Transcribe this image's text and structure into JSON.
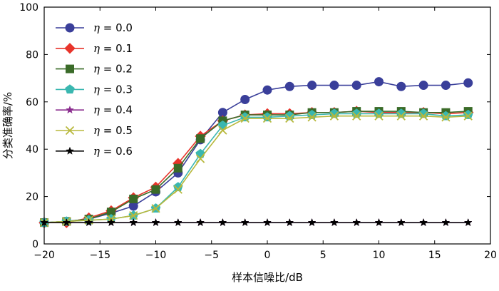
{
  "chart_data": {
    "type": "line",
    "title": "",
    "xlabel": "样本信噪比/dB",
    "ylabel": "分类准确率/%",
    "xlim": [
      -20,
      20
    ],
    "ylim": [
      0,
      100
    ],
    "xticks": [
      -20,
      -15,
      -10,
      -5,
      0,
      5,
      10,
      15,
      20
    ],
    "yticks": [
      0,
      20,
      40,
      60,
      80,
      100
    ],
    "grid": false,
    "legend_position": "top-left",
    "x": [
      -20,
      -18,
      -16,
      -14,
      -12,
      -10,
      -8,
      -6,
      -4,
      -2,
      0,
      2,
      4,
      6,
      8,
      10,
      12,
      14,
      16,
      18
    ],
    "series": [
      {
        "name": "η = 0.0",
        "color": "#3a3f9a",
        "marker": "circle",
        "values": [
          9,
          9.5,
          10.5,
          13,
          16,
          22,
          30,
          44,
          55.5,
          61,
          65,
          66.5,
          67,
          67,
          67,
          68.5,
          66.5,
          67,
          67,
          68
        ]
      },
      {
        "name": "η = 0.1",
        "color": "#e8342b",
        "marker": "diamond",
        "values": [
          9,
          9,
          11,
          14,
          19.5,
          24,
          34,
          45.5,
          52,
          54.5,
          55,
          55,
          55.5,
          55.5,
          56,
          55.5,
          55.5,
          55.5,
          55,
          55.5
        ]
      },
      {
        "name": "η = 0.2",
        "color": "#3a6b28",
        "marker": "square",
        "values": [
          9,
          9.5,
          10.5,
          13.5,
          19,
          23,
          32,
          44.5,
          52,
          54.5,
          54.5,
          54.5,
          55.5,
          55.5,
          56,
          56,
          56,
          55.5,
          55.5,
          56
        ]
      },
      {
        "name": "η = 0.3",
        "color": "#3ab7b0",
        "marker": "pentagon",
        "values": [
          9,
          9.5,
          10,
          10.5,
          12,
          15,
          24,
          38,
          50,
          53.5,
          53.5,
          54,
          54.5,
          55,
          55,
          55,
          55,
          55,
          54,
          54.5
        ]
      },
      {
        "name": "η = 0.4",
        "color": "#8a2c8e",
        "marker": "star",
        "values": [
          9,
          9,
          9,
          9,
          9,
          9,
          9,
          9,
          9,
          9,
          9,
          9,
          9,
          9,
          9,
          9,
          9,
          9,
          9,
          9
        ]
      },
      {
        "name": "η = 0.5",
        "color": "#b8b83c",
        "marker": "x",
        "values": [
          9,
          9.5,
          10,
          10.5,
          12,
          15,
          23,
          36,
          48,
          53,
          53,
          53,
          53.5,
          54,
          54,
          54,
          54,
          54,
          53.5,
          54
        ]
      },
      {
        "name": "η = 0.6",
        "color": "#000000",
        "marker": "star",
        "values": [
          9,
          9,
          9,
          9,
          9,
          9,
          9,
          9,
          9,
          9,
          9,
          9,
          9,
          9,
          9,
          9,
          9,
          9,
          9,
          9
        ]
      }
    ]
  }
}
